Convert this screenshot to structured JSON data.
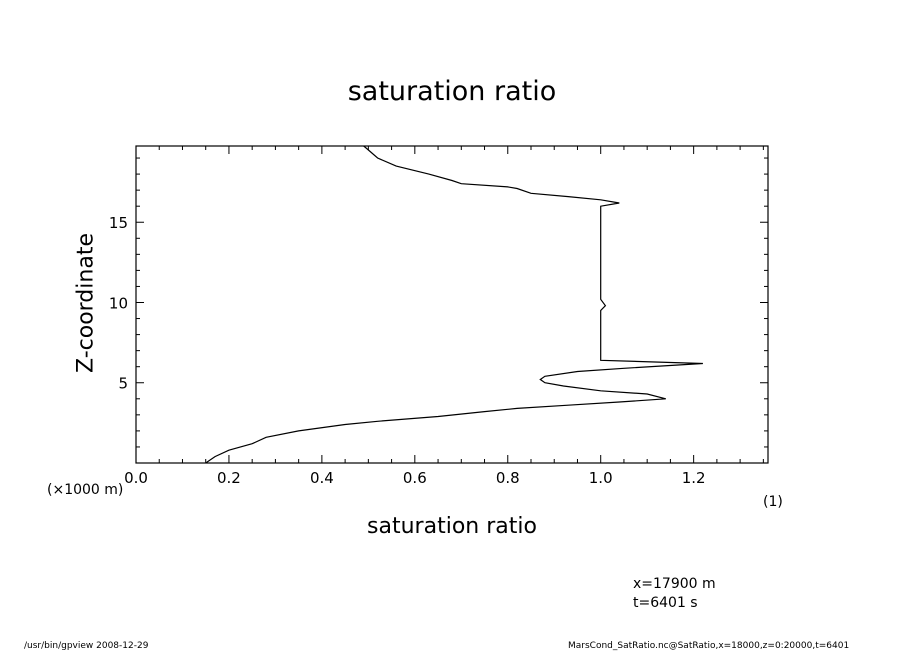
{
  "chart_data": {
    "type": "line",
    "title": "saturation ratio",
    "xlabel": "saturation ratio",
    "ylabel": "Z-coordinate",
    "x_unit_label": "(1)",
    "y_unit_label": "(×1000 m)",
    "xlim": [
      0.0,
      1.36
    ],
    "ylim": [
      0,
      19.75
    ],
    "xticks": [
      "0.0",
      "0.2",
      "0.4",
      "0.6",
      "0.8",
      "1.0",
      "1.2"
    ],
    "xtick_values": [
      0.0,
      0.2,
      0.4,
      0.6,
      0.8,
      1.0,
      1.2
    ],
    "yticks": [
      "5",
      "10",
      "15"
    ],
    "ytick_values": [
      5,
      10,
      15
    ],
    "grid": false,
    "series": [
      {
        "points": [
          [
            0.15,
            0.0
          ],
          [
            0.17,
            0.4
          ],
          [
            0.2,
            0.8
          ],
          [
            0.25,
            1.2
          ],
          [
            0.28,
            1.6
          ],
          [
            0.35,
            2.0
          ],
          [
            0.45,
            2.4
          ],
          [
            0.52,
            2.6
          ],
          [
            0.65,
            2.9
          ],
          [
            0.75,
            3.2
          ],
          [
            0.82,
            3.4
          ],
          [
            0.93,
            3.6
          ],
          [
            1.04,
            3.8
          ],
          [
            1.14,
            4.0
          ],
          [
            1.1,
            4.3
          ],
          [
            1.0,
            4.5
          ],
          [
            0.92,
            4.8
          ],
          [
            0.88,
            5.0
          ],
          [
            0.87,
            5.2
          ],
          [
            0.88,
            5.4
          ],
          [
            0.95,
            5.7
          ],
          [
            1.05,
            5.9
          ],
          [
            1.22,
            6.2
          ],
          [
            1.0,
            6.4
          ],
          [
            1.0,
            8.0
          ],
          [
            1.0,
            9.5
          ],
          [
            1.01,
            9.8
          ],
          [
            1.0,
            10.2
          ],
          [
            1.0,
            12.0
          ],
          [
            1.0,
            14.0
          ],
          [
            1.0,
            15.6
          ],
          [
            1.0,
            16.0
          ],
          [
            1.04,
            16.2
          ],
          [
            1.0,
            16.4
          ],
          [
            0.93,
            16.6
          ],
          [
            0.85,
            16.8
          ],
          [
            0.82,
            17.1
          ],
          [
            0.8,
            17.2
          ],
          [
            0.7,
            17.4
          ],
          [
            0.68,
            17.6
          ],
          [
            0.63,
            18.0
          ],
          [
            0.56,
            18.5
          ],
          [
            0.52,
            19.0
          ],
          [
            0.5,
            19.5
          ],
          [
            0.49,
            19.75
          ]
        ]
      }
    ]
  },
  "annotations": {
    "x_position": "x=17900 m",
    "time": "t=6401 s"
  },
  "footer": {
    "left": "/usr/bin/gpview   2008-12-29",
    "right": "MarsCond_SatRatio.nc@SatRatio,x=18000,z=0:20000,t=6401"
  }
}
